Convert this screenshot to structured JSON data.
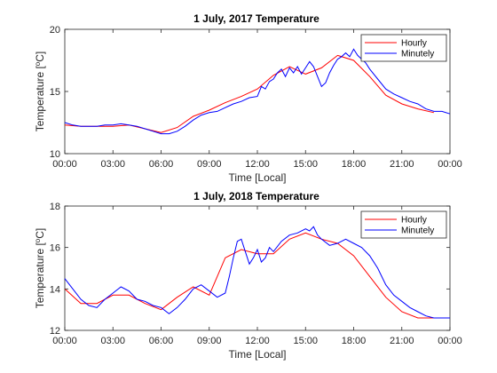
{
  "chart_data": [
    {
      "type": "line",
      "title": "1 July, 2017 Temperature",
      "xlabel": "Time [Local]",
      "ylabel": "Temperature [",
      "ylabel_unit": "o",
      "ylabel_suffix": "C]",
      "x_ticks": [
        "00:00",
        "03:00",
        "06:00",
        "09:00",
        "12:00",
        "15:00",
        "18:00",
        "21:00",
        "00:00"
      ],
      "xlim": [
        0,
        24
      ],
      "ylim": [
        10,
        20
      ],
      "y_ticks": [
        10,
        15,
        20
      ],
      "y_tick_labels": [
        "10",
        "15",
        "20"
      ],
      "legend_position": "top-right",
      "series": [
        {
          "name": "Hourly",
          "color": "#ff0000",
          "x": [
            0,
            1,
            2,
            3,
            4,
            5,
            6,
            7,
            8,
            9,
            10,
            11,
            12,
            13,
            14,
            15,
            16,
            17,
            18,
            19,
            20,
            21,
            22,
            23
          ],
          "y": [
            12.3,
            12.2,
            12.2,
            12.2,
            12.3,
            12.0,
            11.7,
            12.1,
            13.0,
            13.5,
            14.1,
            14.6,
            15.2,
            16.3,
            17.0,
            16.4,
            16.9,
            17.9,
            17.5,
            16.2,
            14.7,
            14.0,
            13.6,
            13.3
          ]
        },
        {
          "name": "Minutely",
          "color": "#0000ff",
          "x": [
            0,
            0.5,
            1,
            1.5,
            2,
            2.5,
            3,
            3.5,
            4,
            4.5,
            5,
            5.5,
            6,
            6.5,
            7,
            7.5,
            8,
            8.5,
            9,
            9.5,
            10,
            10.5,
            11,
            11.5,
            12,
            12.25,
            12.5,
            12.75,
            13,
            13.25,
            13.5,
            13.75,
            14,
            14.25,
            14.5,
            14.75,
            15,
            15.25,
            15.5,
            15.75,
            16,
            16.25,
            16.5,
            16.75,
            17,
            17.25,
            17.5,
            17.75,
            18,
            18.25,
            18.5,
            18.75,
            19,
            19.5,
            20,
            20.5,
            21,
            21.5,
            22,
            22.5,
            23,
            23.5,
            24
          ],
          "y": [
            12.5,
            12.3,
            12.2,
            12.2,
            12.2,
            12.3,
            12.3,
            12.4,
            12.3,
            12.2,
            12.0,
            11.8,
            11.6,
            11.6,
            11.8,
            12.2,
            12.7,
            13.1,
            13.3,
            13.4,
            13.7,
            14.0,
            14.2,
            14.5,
            14.6,
            15.4,
            15.2,
            15.8,
            16.0,
            16.5,
            16.8,
            16.2,
            16.9,
            16.5,
            17.0,
            16.4,
            16.9,
            17.4,
            17.0,
            16.2,
            15.4,
            15.7,
            16.5,
            17.1,
            17.6,
            17.8,
            18.1,
            17.8,
            18.4,
            17.9,
            17.6,
            17.3,
            16.8,
            16.0,
            15.2,
            14.8,
            14.5,
            14.2,
            14.0,
            13.6,
            13.4,
            13.4,
            13.2
          ]
        }
      ]
    },
    {
      "type": "line",
      "title": "1 July, 2018 Temperature",
      "xlabel": "Time [Local]",
      "ylabel": "Temperature [",
      "ylabel_unit": "o",
      "ylabel_suffix": "C]",
      "x_ticks": [
        "00:00",
        "03:00",
        "06:00",
        "09:00",
        "12:00",
        "15:00",
        "18:00",
        "21:00",
        "00:00"
      ],
      "xlim": [
        0,
        24
      ],
      "ylim": [
        12,
        18
      ],
      "y_ticks": [
        12,
        14,
        16,
        18
      ],
      "y_tick_labels": [
        "12",
        "14",
        "16",
        "18"
      ],
      "legend_position": "top-right",
      "series": [
        {
          "name": "Hourly",
          "color": "#ff0000",
          "x": [
            0,
            1,
            2,
            3,
            4,
            5,
            6,
            7,
            8,
            9,
            10,
            11,
            12,
            13,
            14,
            15,
            16,
            17,
            18,
            19,
            20,
            21,
            22,
            23
          ],
          "y": [
            14.0,
            13.3,
            13.3,
            13.7,
            13.7,
            13.3,
            13.0,
            13.6,
            14.1,
            13.7,
            15.5,
            15.9,
            15.7,
            15.7,
            16.4,
            16.7,
            16.4,
            16.2,
            15.6,
            14.6,
            13.6,
            12.9,
            12.6,
            12.6
          ]
        },
        {
          "name": "Minutely",
          "color": "#0000ff",
          "x": [
            0,
            0.5,
            1,
            1.5,
            2,
            2.5,
            3,
            3.5,
            4,
            4.5,
            5,
            5.5,
            6,
            6.5,
            7,
            7.5,
            8,
            8.5,
            9,
            9.5,
            10,
            10.25,
            10.5,
            10.75,
            11,
            11.25,
            11.5,
            11.75,
            12,
            12.25,
            12.5,
            12.75,
            13,
            13.5,
            14,
            14.5,
            15,
            15.25,
            15.5,
            15.75,
            16,
            16.5,
            17,
            17.5,
            18,
            18.5,
            19,
            19.5,
            20,
            20.5,
            21,
            21.5,
            22,
            22.5,
            23,
            23.5,
            24
          ],
          "y": [
            14.5,
            14.0,
            13.5,
            13.2,
            13.1,
            13.5,
            13.8,
            14.1,
            13.9,
            13.5,
            13.4,
            13.2,
            13.1,
            12.8,
            13.1,
            13.5,
            14.0,
            14.2,
            13.9,
            13.6,
            13.8,
            14.6,
            15.5,
            16.3,
            16.4,
            15.8,
            15.2,
            15.5,
            15.9,
            15.3,
            15.5,
            16.0,
            15.8,
            16.3,
            16.6,
            16.7,
            16.9,
            16.8,
            17.0,
            16.6,
            16.4,
            16.1,
            16.2,
            16.4,
            16.2,
            16.0,
            15.6,
            15.0,
            14.2,
            13.7,
            13.4,
            13.1,
            12.9,
            12.7,
            12.6,
            12.6,
            12.6
          ]
        }
      ]
    }
  ]
}
